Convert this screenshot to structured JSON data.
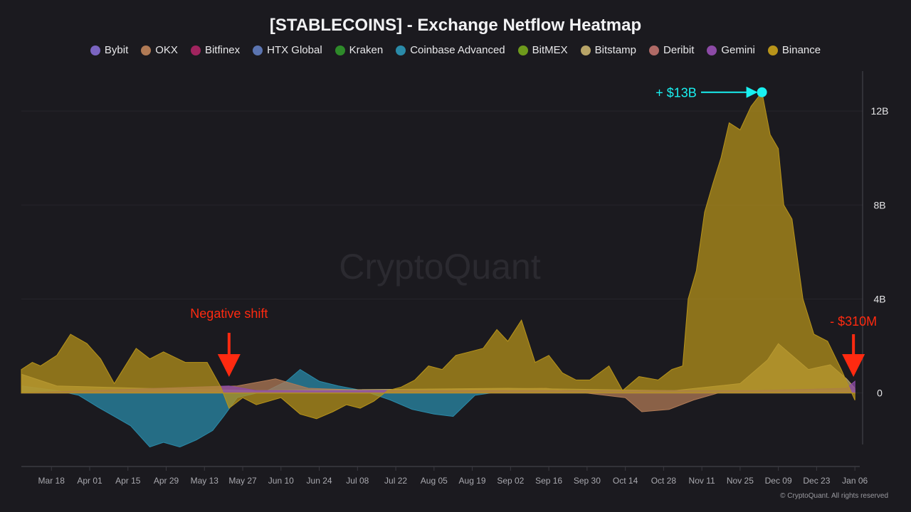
{
  "chart_data": {
    "type": "area",
    "title": "[STABLECOINS] - Exchange Netflow Heatmap",
    "watermark": "CryptoQuant",
    "copyright": "© CryptoQuant. All rights reserved",
    "grid": true,
    "legend_placement": "top-center",
    "ylim": [
      -3.1,
      13.7
    ],
    "y_ticks": [
      {
        "v": 0,
        "label": "0"
      },
      {
        "v": 4,
        "label": "4B"
      },
      {
        "v": 8,
        "label": "8B"
      },
      {
        "v": 12,
        "label": "12B"
      }
    ],
    "x_range": [
      "2024-03-07",
      "2025-01-07"
    ],
    "x_ticks": [
      {
        "d": "2024-03-18",
        "label": "Mar 18"
      },
      {
        "d": "2024-04-01",
        "label": "Apr 01"
      },
      {
        "d": "2024-04-15",
        "label": "Apr 15"
      },
      {
        "d": "2024-04-29",
        "label": "Apr 29"
      },
      {
        "d": "2024-05-13",
        "label": "May 13"
      },
      {
        "d": "2024-05-27",
        "label": "May 27"
      },
      {
        "d": "2024-06-10",
        "label": "Jun 10"
      },
      {
        "d": "2024-06-24",
        "label": "Jun 24"
      },
      {
        "d": "2024-07-08",
        "label": "Jul 08"
      },
      {
        "d": "2024-07-22",
        "label": "Jul 22"
      },
      {
        "d": "2024-08-05",
        "label": "Aug 05"
      },
      {
        "d": "2024-08-19",
        "label": "Aug 19"
      },
      {
        "d": "2024-09-02",
        "label": "Sep 02"
      },
      {
        "d": "2024-09-16",
        "label": "Sep 16"
      },
      {
        "d": "2024-09-30",
        "label": "Sep 30"
      },
      {
        "d": "2024-10-14",
        "label": "Oct 14"
      },
      {
        "d": "2024-10-28",
        "label": "Oct 28"
      },
      {
        "d": "2024-11-11",
        "label": "Nov 11"
      },
      {
        "d": "2024-11-25",
        "label": "Nov 25"
      },
      {
        "d": "2024-12-09",
        "label": "Dec 09"
      },
      {
        "d": "2024-12-23",
        "label": "Dec 23"
      },
      {
        "d": "2025-01-06",
        "label": "Jan 06"
      }
    ],
    "legend": [
      {
        "name": "Bybit",
        "color": "#7a64c0"
      },
      {
        "name": "OKX",
        "color": "#b07a55"
      },
      {
        "name": "Bitfinex",
        "color": "#a0245e"
      },
      {
        "name": "HTX Global",
        "color": "#5b74b0"
      },
      {
        "name": "Kraken",
        "color": "#2e8a2a"
      },
      {
        "name": "Coinbase Advanced",
        "color": "#2a8aa8"
      },
      {
        "name": "BitMEX",
        "color": "#6e9a1c"
      },
      {
        "name": "Bitstamp",
        "color": "#b8a468"
      },
      {
        "name": "Deribit",
        "color": "#b06a66"
      },
      {
        "name": "Gemini",
        "color": "#8c4aa6"
      },
      {
        "name": "Binance",
        "color": "#b8941a"
      }
    ],
    "series": [
      {
        "name": "Coinbase Advanced",
        "color": "#2a8aa8",
        "points": [
          [
            "2024-03-07",
            0.3
          ],
          [
            "2024-03-20",
            0.1
          ],
          [
            "2024-03-28",
            -0.1
          ],
          [
            "2024-04-04",
            -0.6
          ],
          [
            "2024-04-10",
            -1.0
          ],
          [
            "2024-04-16",
            -1.4
          ],
          [
            "2024-04-23",
            -2.3
          ],
          [
            "2024-04-28",
            -2.1
          ],
          [
            "2024-05-04",
            -2.3
          ],
          [
            "2024-05-10",
            -2.0
          ],
          [
            "2024-05-16",
            -1.6
          ],
          [
            "2024-05-20",
            -1.0
          ],
          [
            "2024-05-25",
            -0.2
          ],
          [
            "2024-06-05",
            0.1
          ],
          [
            "2024-06-12",
            0.5
          ],
          [
            "2024-06-17",
            1.0
          ],
          [
            "2024-06-24",
            0.5
          ],
          [
            "2024-07-01",
            0.3
          ],
          [
            "2024-07-10",
            0.1
          ],
          [
            "2024-07-20",
            -0.3
          ],
          [
            "2024-07-28",
            -0.7
          ],
          [
            "2024-08-05",
            -0.9
          ],
          [
            "2024-08-12",
            -1.0
          ],
          [
            "2024-08-20",
            -0.1
          ],
          [
            "2024-09-01",
            0.1
          ],
          [
            "2024-10-01",
            0.05
          ],
          [
            "2024-11-01",
            0.1
          ],
          [
            "2024-12-01",
            0.1
          ],
          [
            "2025-01-06",
            0.1
          ]
        ]
      },
      {
        "name": "OKX",
        "color": "#b07a55",
        "points": [
          [
            "2024-03-07",
            0.0
          ],
          [
            "2024-05-25",
            0.3
          ],
          [
            "2024-06-08",
            0.6
          ],
          [
            "2024-06-20",
            0.2
          ],
          [
            "2024-07-15",
            0.1
          ],
          [
            "2024-09-15",
            0.2
          ],
          [
            "2024-10-14",
            -0.2
          ],
          [
            "2024-10-20",
            -0.8
          ],
          [
            "2024-10-30",
            -0.7
          ],
          [
            "2024-11-08",
            -0.3
          ],
          [
            "2024-11-20",
            0.1
          ],
          [
            "2025-01-06",
            0.1
          ]
        ]
      },
      {
        "name": "Bitstamp",
        "color": "#b8a468",
        "points": [
          [
            "2024-03-07",
            0.8
          ],
          [
            "2024-03-20",
            0.3
          ],
          [
            "2024-04-20",
            0.2
          ],
          [
            "2024-06-01",
            0.1
          ],
          [
            "2024-09-01",
            0.2
          ],
          [
            "2024-11-01",
            0.1
          ],
          [
            "2024-11-25",
            0.4
          ],
          [
            "2024-12-05",
            1.4
          ],
          [
            "2024-12-09",
            2.1
          ],
          [
            "2024-12-14",
            1.6
          ],
          [
            "2024-12-20",
            1.0
          ],
          [
            "2024-12-28",
            1.2
          ],
          [
            "2025-01-03",
            0.6
          ],
          [
            "2025-01-06",
            0.2
          ]
        ]
      },
      {
        "name": "Gemini",
        "color": "#8c4aa6",
        "points": [
          [
            "2024-03-07",
            0.0
          ],
          [
            "2024-05-22",
            0.3
          ],
          [
            "2024-06-01",
            0.1
          ],
          [
            "2024-12-01",
            0.1
          ],
          [
            "2025-01-03",
            0.2
          ],
          [
            "2025-01-06",
            0.5
          ]
        ]
      },
      {
        "name": "Binance",
        "color": "#b8941a",
        "points": [
          [
            "2024-03-07",
            1.0
          ],
          [
            "2024-03-11",
            1.3
          ],
          [
            "2024-03-14",
            1.15
          ],
          [
            "2024-03-20",
            1.6
          ],
          [
            "2024-03-25",
            2.5
          ],
          [
            "2024-03-31",
            2.1
          ],
          [
            "2024-04-05",
            1.45
          ],
          [
            "2024-04-10",
            0.4
          ],
          [
            "2024-04-18",
            1.9
          ],
          [
            "2024-04-23",
            1.45
          ],
          [
            "2024-04-28",
            1.75
          ],
          [
            "2024-05-06",
            1.3
          ],
          [
            "2024-05-14",
            1.3
          ],
          [
            "2024-05-19",
            0.25
          ],
          [
            "2024-05-22",
            -0.65
          ],
          [
            "2024-05-27",
            -0.2
          ],
          [
            "2024-06-01",
            -0.5
          ],
          [
            "2024-06-10",
            -0.2
          ],
          [
            "2024-06-17",
            -0.9
          ],
          [
            "2024-06-23",
            -1.1
          ],
          [
            "2024-06-29",
            -0.8
          ],
          [
            "2024-07-04",
            -0.5
          ],
          [
            "2024-07-09",
            -0.65
          ],
          [
            "2024-07-14",
            -0.35
          ],
          [
            "2024-07-19",
            0.1
          ],
          [
            "2024-07-24",
            0.25
          ],
          [
            "2024-07-29",
            0.55
          ],
          [
            "2024-08-03",
            1.15
          ],
          [
            "2024-08-08",
            1.0
          ],
          [
            "2024-08-13",
            1.6
          ],
          [
            "2024-08-18",
            1.75
          ],
          [
            "2024-08-23",
            1.9
          ],
          [
            "2024-08-28",
            2.7
          ],
          [
            "2024-09-01",
            2.2
          ],
          [
            "2024-09-06",
            3.1
          ],
          [
            "2024-09-11",
            1.3
          ],
          [
            "2024-09-16",
            1.6
          ],
          [
            "2024-09-21",
            0.85
          ],
          [
            "2024-09-26",
            0.55
          ],
          [
            "2024-10-01",
            0.55
          ],
          [
            "2024-10-08",
            1.15
          ],
          [
            "2024-10-13",
            0.1
          ],
          [
            "2024-10-19",
            0.7
          ],
          [
            "2024-10-26",
            0.55
          ],
          [
            "2024-10-31",
            1.0
          ],
          [
            "2024-11-04",
            1.15
          ],
          [
            "2024-11-06",
            4.0
          ],
          [
            "2024-11-09",
            5.2
          ],
          [
            "2024-11-12",
            7.7
          ],
          [
            "2024-11-15",
            8.9
          ],
          [
            "2024-11-18",
            10.0
          ],
          [
            "2024-11-21",
            11.5
          ],
          [
            "2024-11-25",
            11.2
          ],
          [
            "2024-11-29",
            12.2
          ],
          [
            "2024-12-03",
            12.8
          ],
          [
            "2024-12-06",
            11.0
          ],
          [
            "2024-12-09",
            10.4
          ],
          [
            "2024-12-11",
            8.0
          ],
          [
            "2024-12-14",
            7.4
          ],
          [
            "2024-12-18",
            4.0
          ],
          [
            "2024-12-22",
            2.5
          ],
          [
            "2024-12-27",
            2.2
          ],
          [
            "2025-01-01",
            1.0
          ],
          [
            "2025-01-06",
            -0.31
          ]
        ]
      }
    ],
    "annotations": [
      {
        "text": "+ $13B",
        "color": "#19f0f0",
        "d": "2024-12-03",
        "v": 12.8
      },
      {
        "text": "Negative shift",
        "color": "#ff2a10",
        "d": "2024-05-22",
        "v": -0.65
      },
      {
        "text": "- $310M",
        "color": "#ff2a10",
        "d": "2025-01-06",
        "v": -0.31
      }
    ]
  }
}
